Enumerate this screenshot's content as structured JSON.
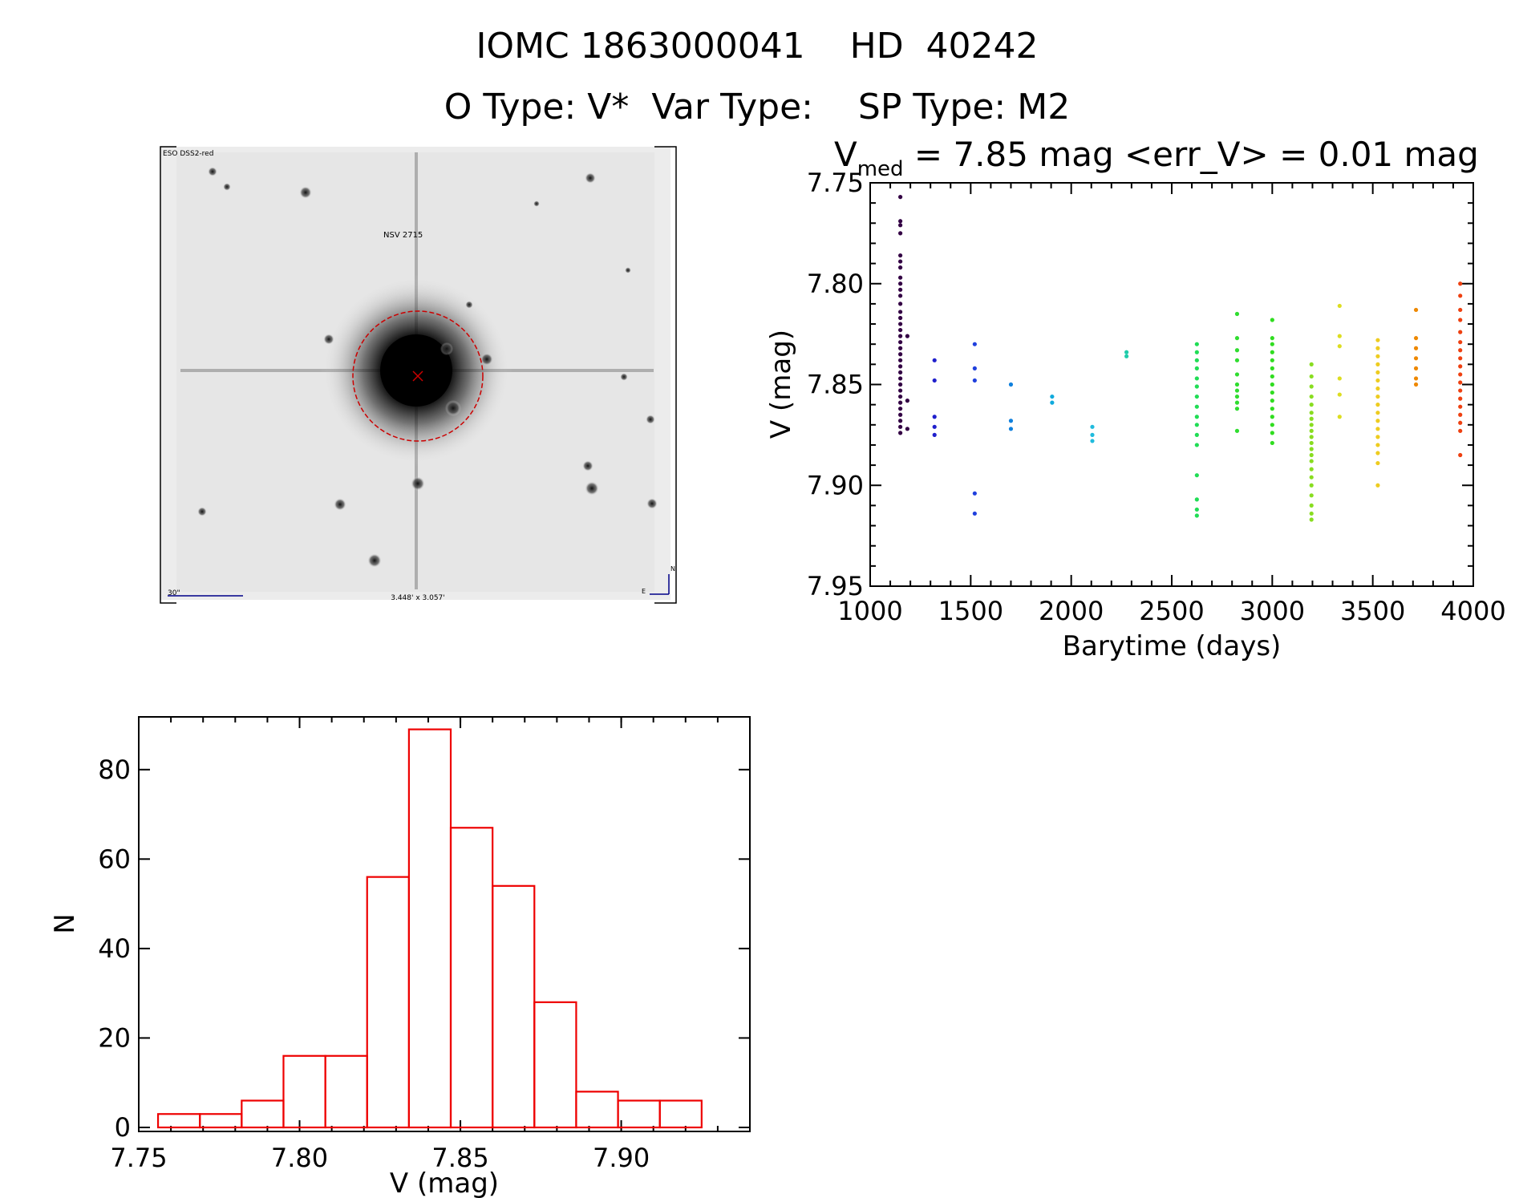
{
  "header": {
    "line1": "IOMC 1863000041    HD  40242",
    "line2": "O Type: V*  Var Type:    SP Type: M2"
  },
  "finder_image": {
    "top_left_label": "ESO DSS2-red",
    "object_label": "NSV 2715",
    "scale_label": "30\"",
    "size_label": "3.448' x 3.057'",
    "compass_north": "N",
    "compass_east": "E",
    "circle_color": "#cc0000"
  },
  "chart_data": [
    {
      "type": "scatter",
      "title_prefix": "V",
      "title_subscript": "med",
      "title_rest": " = 7.85 mag <err_V> = 0.01 mag",
      "xlabel": "Barytime (days)",
      "ylabel": "V (mag)",
      "xlim": [
        1000,
        4000
      ],
      "ylim": [
        7.95,
        7.75
      ],
      "xticks": [
        "1000",
        "1500",
        "2000",
        "2500",
        "3000",
        "3500",
        "4000"
      ],
      "yticks": [
        "7.75",
        "7.80",
        "7.85",
        "7.90",
        "7.95"
      ],
      "groups": [
        {
          "x": 1150,
          "color": "#330044",
          "y": [
            7.757,
            7.769,
            7.771,
            7.775,
            7.786,
            7.789,
            7.792,
            7.797,
            7.8,
            7.803,
            7.806,
            7.81,
            7.814,
            7.817,
            7.82,
            7.823,
            7.826,
            7.829,
            7.832,
            7.835,
            7.838,
            7.841,
            7.844,
            7.847,
            7.85,
            7.853,
            7.856,
            7.859,
            7.862,
            7.865,
            7.868,
            7.871,
            7.874
          ]
        },
        {
          "x": 1185,
          "color": "#330044",
          "y": [
            7.826,
            7.858,
            7.872
          ]
        },
        {
          "x": 1320,
          "color": "#2020cc",
          "y": [
            7.838,
            7.848,
            7.866,
            7.871,
            7.875
          ]
        },
        {
          "x": 1520,
          "color": "#2040dd",
          "y": [
            7.83,
            7.842,
            7.848,
            7.904,
            7.914
          ]
        },
        {
          "x": 1700,
          "color": "#1080dd",
          "y": [
            7.85,
            7.868,
            7.872
          ]
        },
        {
          "x": 1905,
          "color": "#10aadd",
          "y": [
            7.856,
            7.859
          ]
        },
        {
          "x": 2105,
          "color": "#20bbdd",
          "y": [
            7.871,
            7.875,
            7.878
          ]
        },
        {
          "x": 2275,
          "color": "#20ccaa",
          "y": [
            7.834,
            7.836
          ]
        },
        {
          "x": 2625,
          "color": "#20dd55",
          "y": [
            7.83,
            7.834,
            7.838,
            7.842,
            7.847,
            7.851,
            7.856,
            7.861,
            7.866,
            7.87,
            7.875,
            7.88,
            7.895,
            7.907,
            7.912,
            7.915
          ]
        },
        {
          "x": 2825,
          "color": "#30dd30",
          "y": [
            7.815,
            7.827,
            7.833,
            7.838,
            7.845,
            7.85,
            7.853,
            7.856,
            7.859,
            7.862,
            7.873
          ]
        },
        {
          "x": 3000,
          "color": "#30dd20",
          "y": [
            7.818,
            7.827,
            7.83,
            7.834,
            7.838,
            7.842,
            7.846,
            7.85,
            7.854,
            7.858,
            7.862,
            7.866,
            7.87,
            7.874,
            7.879
          ]
        },
        {
          "x": 3195,
          "color": "#88dd20",
          "y": [
            7.84,
            7.846,
            7.851,
            7.856,
            7.86,
            7.864,
            7.867,
            7.87,
            7.873,
            7.876,
            7.879,
            7.882,
            7.885,
            7.888,
            7.892,
            7.896,
            7.9,
            7.905,
            7.91,
            7.914,
            7.917
          ]
        },
        {
          "x": 3335,
          "color": "#dddd20",
          "y": [
            7.811,
            7.826,
            7.831,
            7.847,
            7.855,
            7.866
          ]
        },
        {
          "x": 3525,
          "color": "#eecc20",
          "y": [
            7.828,
            7.832,
            7.836,
            7.84,
            7.844,
            7.848,
            7.852,
            7.856,
            7.86,
            7.864,
            7.868,
            7.872,
            7.876,
            7.88,
            7.884,
            7.889,
            7.9
          ]
        },
        {
          "x": 3715,
          "color": "#ee8800",
          "y": [
            7.813,
            7.827,
            7.832,
            7.837,
            7.842,
            7.847,
            7.85
          ]
        },
        {
          "x": 3935,
          "color": "#ee4010",
          "y": [
            7.8,
            7.806,
            7.813,
            7.818,
            7.824,
            7.829,
            7.833,
            7.837,
            7.841,
            7.845,
            7.849,
            7.853,
            7.857,
            7.861,
            7.865,
            7.869,
            7.873,
            7.885
          ]
        }
      ]
    },
    {
      "type": "bar",
      "subtype": "histogram",
      "xlabel": "V (mag)",
      "ylabel": "N",
      "xlim": [
        7.75,
        7.94
      ],
      "ylim": [
        0,
        90
      ],
      "xticks": [
        "7.75",
        "7.80",
        "7.85",
        "7.90"
      ],
      "yticks": [
        "0",
        "20",
        "40",
        "60",
        "80"
      ],
      "bar_color": "#ee0000",
      "bin_edges": [
        7.756,
        7.769,
        7.782,
        7.795,
        7.808,
        7.821,
        7.834,
        7.847,
        7.86,
        7.873,
        7.886,
        7.899,
        7.912,
        7.925
      ],
      "values": [
        3,
        3,
        6,
        16,
        16,
        56,
        89,
        67,
        54,
        28,
        8,
        6,
        6
      ]
    }
  ]
}
